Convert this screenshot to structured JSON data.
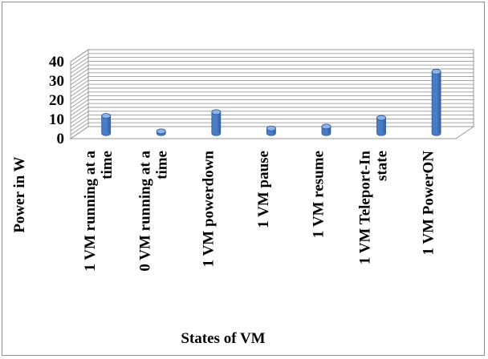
{
  "chart_data": {
    "type": "bar",
    "style": "3d-column",
    "categories": [
      [
        "1 VM running at a",
        "time"
      ],
      [
        "0 VM running at a",
        "time"
      ],
      [
        "1 VM powerdown"
      ],
      [
        "1 VM pause"
      ],
      [
        "1 VM resume"
      ],
      [
        "1 VM Teleport-In",
        "state"
      ],
      [
        "1 VM PowerON"
      ]
    ],
    "values": [
      9,
      1,
      11,
      2.5,
      3.5,
      8,
      32
    ],
    "xlabel": "States of VM",
    "ylabel": "Power  in W",
    "ylim": [
      0,
      40
    ],
    "yticks": [
      0,
      10,
      20,
      30,
      40
    ],
    "grid": true,
    "colors": {
      "bar_front": "#4a7cc4",
      "bar_side": "#2f5a99",
      "bar_top": "#8db4e8",
      "grid": "#9a9a9a",
      "wall": "#ffffff"
    }
  }
}
